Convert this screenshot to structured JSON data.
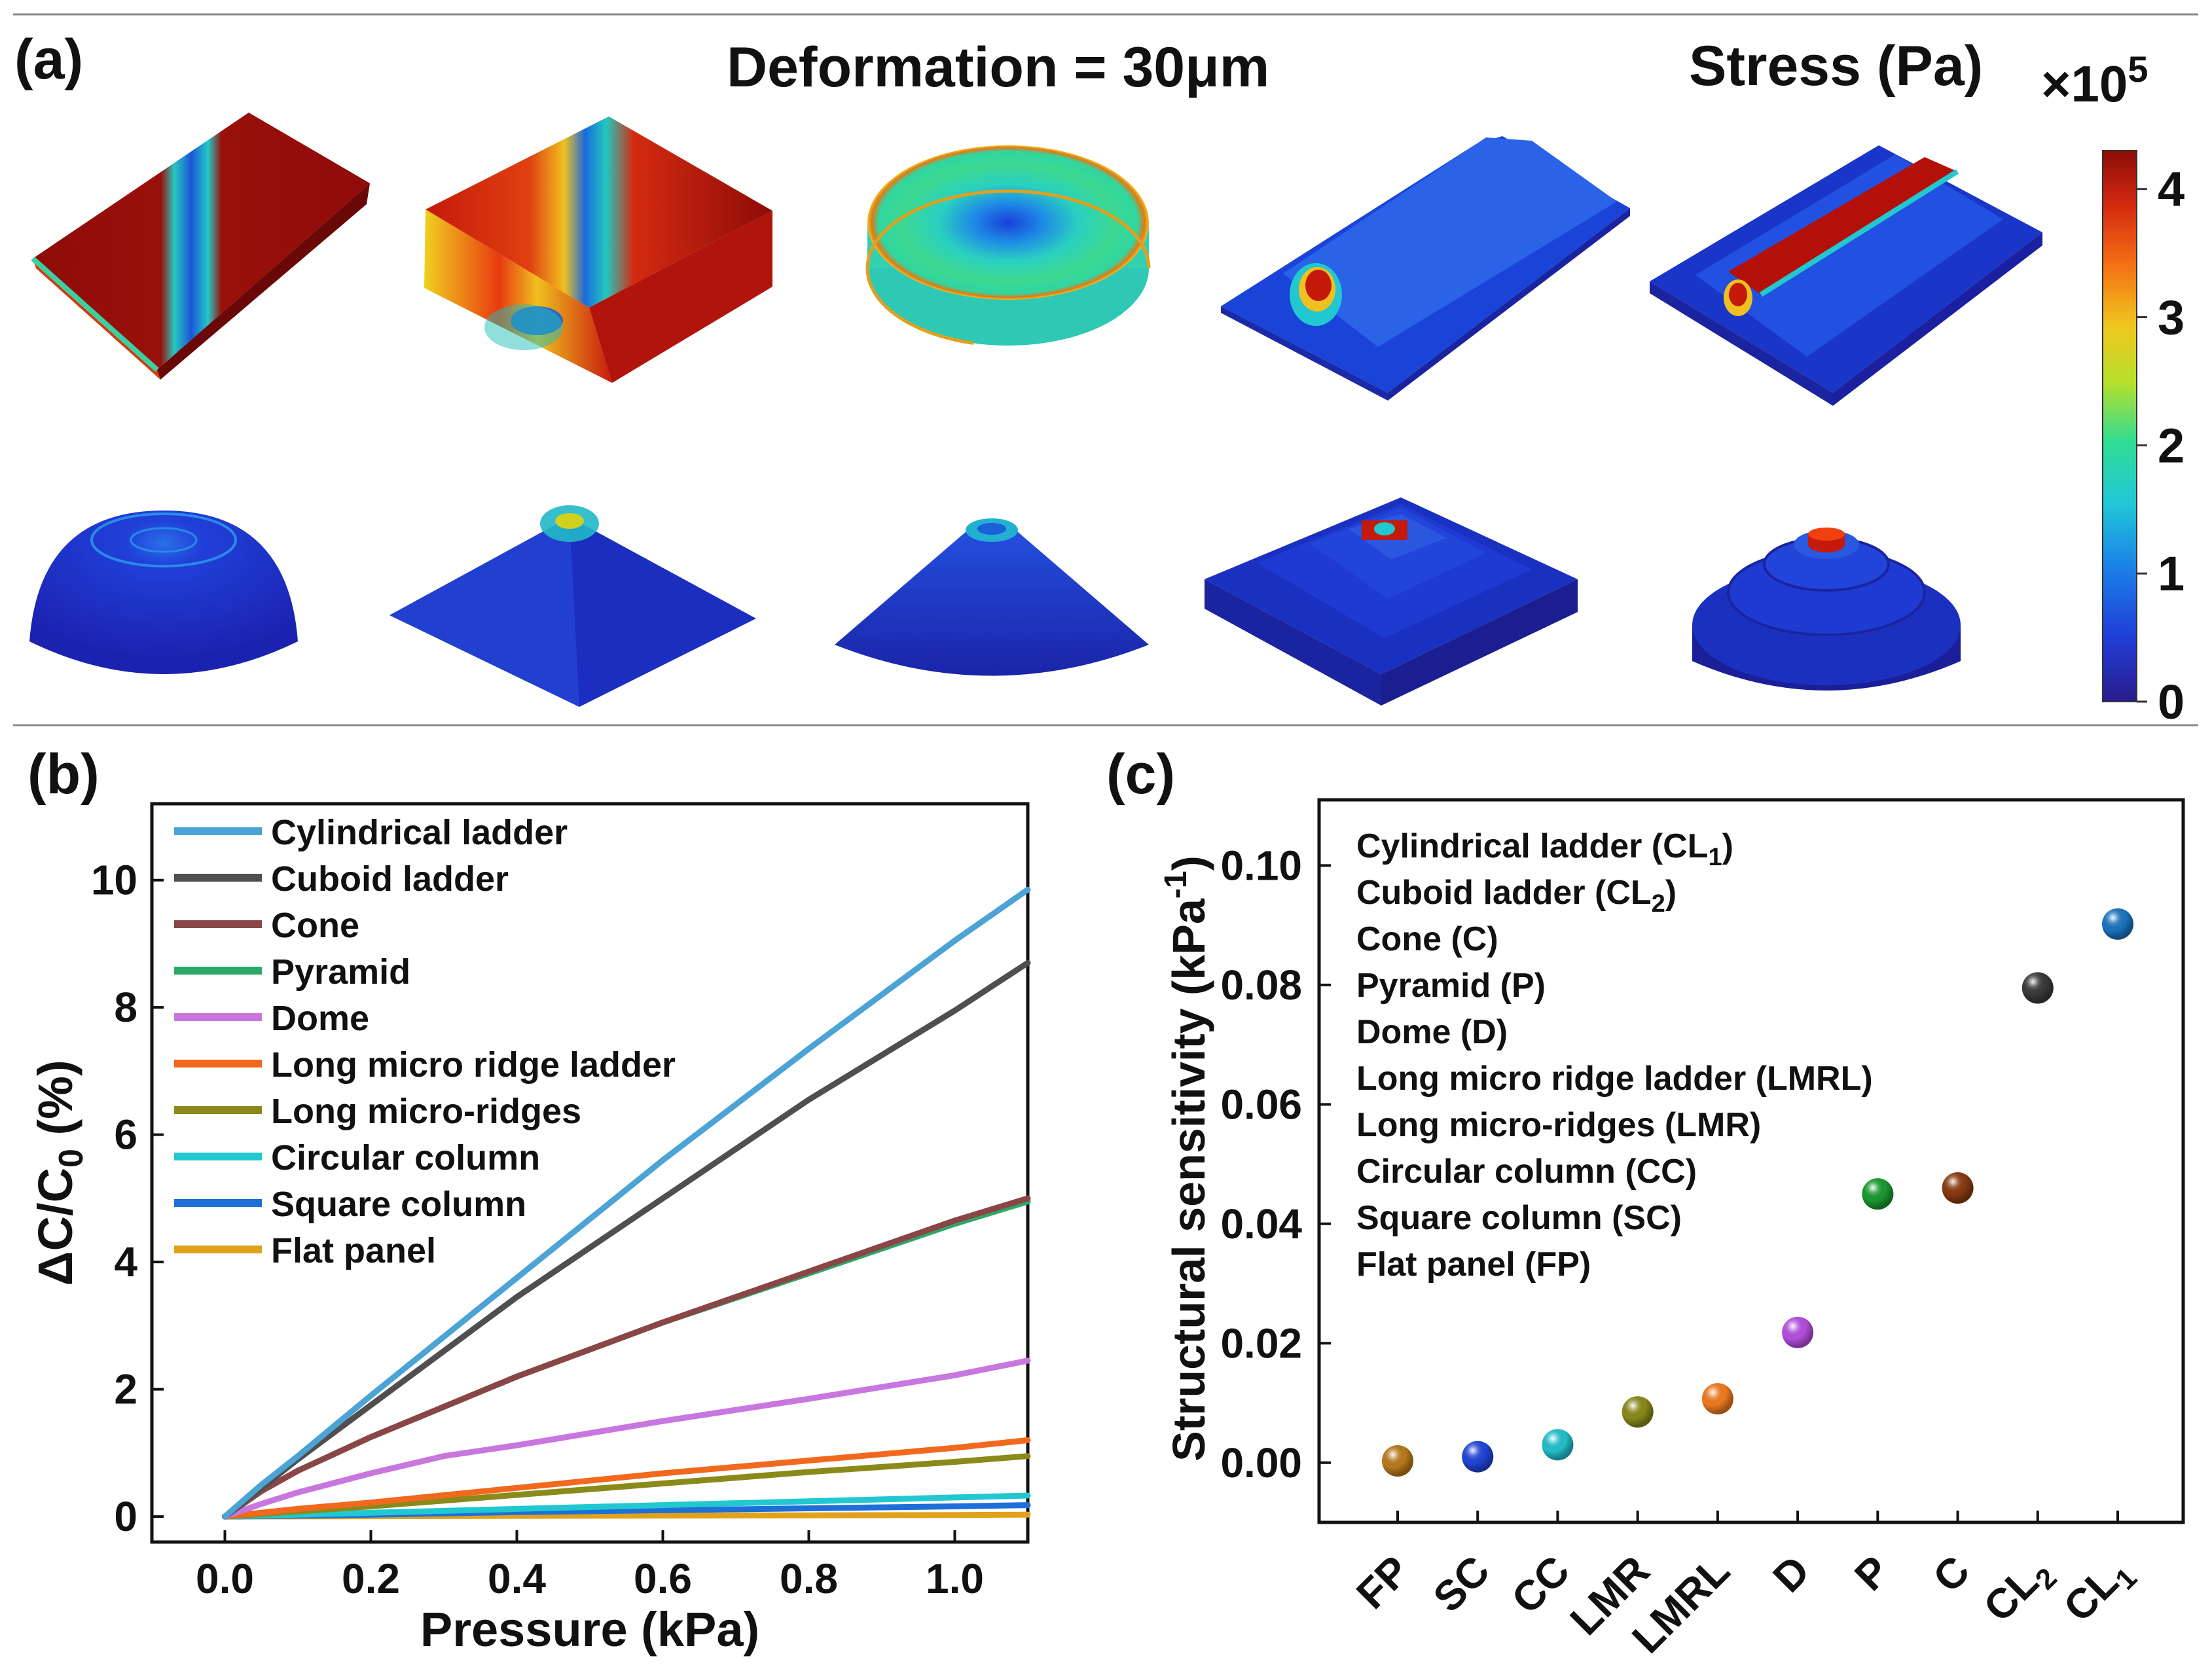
{
  "panel_a": {
    "label": "(a)",
    "title": "Deformation = 30μm",
    "stress_label": "Stress (Pa)",
    "stress_multiplier": "×10",
    "stress_exponent": "5",
    "colorbar_ticks": [
      "0",
      "1",
      "2",
      "3",
      "4"
    ],
    "colormap": [
      "#2a1c8c",
      "#1f3fd8",
      "#1b84e8",
      "#21c8d8",
      "#2fdc94",
      "#b8e02c",
      "#f0c81e",
      "#f46a14",
      "#d42a10",
      "#8c0c08"
    ],
    "shapes_row1": [
      "long-micro-ridges",
      "square-column",
      "circular-column",
      "long-micro-ridge-ladder-single",
      "long-micro-ridge-ladder"
    ],
    "shapes_row2": [
      "dome",
      "pyramid",
      "cone",
      "cuboid-ladder",
      "cylindrical-ladder"
    ]
  },
  "chart_data": [
    {
      "type": "line",
      "panel_label": "(b)",
      "xlabel": "Pressure (kPa)",
      "ylabel_main": "ΔC/C",
      "ylabel_sub": "0",
      "ylabel_tail": " (%)",
      "xlim": [
        -0.1,
        1.1
      ],
      "ylim": [
        -0.4,
        11.2
      ],
      "xticks": [
        0.0,
        0.2,
        0.4,
        0.6,
        0.8,
        1.0
      ],
      "xtick_labels": [
        "0.0",
        "0.2",
        "0.4",
        "0.6",
        "0.8",
        "1.0"
      ],
      "yticks": [
        0,
        2,
        4,
        6,
        8,
        10
      ],
      "ytick_labels": [
        "0",
        "2",
        "4",
        "6",
        "8",
        "10"
      ],
      "legend_position": "top-left",
      "series": [
        {
          "name": "Cylindrical ladder",
          "color": "#4ba3d6",
          "x": [
            0,
            0.05,
            0.1,
            0.2,
            0.4,
            0.6,
            0.8,
            1.0,
            1.1
          ],
          "y": [
            0,
            0.5,
            0.95,
            1.9,
            3.75,
            5.6,
            7.35,
            9.05,
            9.85
          ]
        },
        {
          "name": "Cuboid ladder",
          "color": "#4f4f4f",
          "x": [
            0,
            0.05,
            0.1,
            0.2,
            0.4,
            0.6,
            0.8,
            1.0,
            1.1
          ],
          "y": [
            0,
            0.45,
            0.9,
            1.75,
            3.45,
            5.0,
            6.55,
            7.95,
            8.7
          ]
        },
        {
          "name": "Cone",
          "color": "#8a4646",
          "x": [
            0,
            0.05,
            0.1,
            0.2,
            0.4,
            0.6,
            0.8,
            1.0,
            1.1
          ],
          "y": [
            0,
            0.4,
            0.72,
            1.25,
            2.2,
            3.05,
            3.85,
            4.65,
            5.0
          ]
        },
        {
          "name": "Pyramid",
          "color": "#2ea86a",
          "x": [
            0,
            0.05,
            0.1,
            0.2,
            0.4,
            0.6,
            0.8,
            1.0,
            1.1
          ],
          "y": [
            0,
            0.4,
            0.72,
            1.25,
            2.2,
            3.05,
            3.82,
            4.6,
            4.95
          ]
        },
        {
          "name": "Dome",
          "color": "#c777de",
          "x": [
            0,
            0.05,
            0.1,
            0.2,
            0.3,
            0.4,
            0.6,
            0.8,
            1.0,
            1.1
          ],
          "y": [
            0,
            0.2,
            0.38,
            0.68,
            0.95,
            1.12,
            1.5,
            1.85,
            2.22,
            2.45
          ]
        },
        {
          "name": "Long micro ridge ladder",
          "color": "#f2691e",
          "x": [
            0,
            0.1,
            0.2,
            0.4,
            0.6,
            0.8,
            1.0,
            1.1
          ],
          "y": [
            0,
            0.12,
            0.22,
            0.45,
            0.68,
            0.88,
            1.08,
            1.2
          ]
        },
        {
          "name": "Long micro-ridges",
          "color": "#8a8a1a",
          "x": [
            0,
            0.1,
            0.2,
            0.4,
            0.6,
            0.8,
            1.0,
            1.1
          ],
          "y": [
            0,
            0.08,
            0.16,
            0.34,
            0.52,
            0.7,
            0.86,
            0.95
          ]
        },
        {
          "name": "Circular column",
          "color": "#22c8d0",
          "x": [
            0,
            0.2,
            0.4,
            0.6,
            0.8,
            1.0,
            1.1
          ],
          "y": [
            0,
            0.06,
            0.12,
            0.18,
            0.24,
            0.3,
            0.33
          ]
        },
        {
          "name": "Square column",
          "color": "#1f6fd8",
          "x": [
            0,
            0.2,
            0.4,
            0.6,
            0.8,
            1.0,
            1.1
          ],
          "y": [
            0,
            0.03,
            0.07,
            0.1,
            0.13,
            0.16,
            0.18
          ]
        },
        {
          "name": "Flat panel",
          "color": "#e0a21a",
          "x": [
            0,
            0.2,
            0.4,
            0.6,
            0.8,
            1.0,
            1.1
          ],
          "y": [
            0,
            0.005,
            0.01,
            0.015,
            0.02,
            0.025,
            0.03
          ]
        }
      ]
    },
    {
      "type": "scatter",
      "panel_label": "(c)",
      "ylabel_main": "Structural sensitivity (kPa",
      "ylabel_sup": "-1",
      "ylabel_tail": ")",
      "ylim": [
        -0.01,
        0.111
      ],
      "yticks": [
        0.0,
        0.02,
        0.04,
        0.06,
        0.08,
        0.1
      ],
      "ytick_labels": [
        "0.00",
        "0.02",
        "0.04",
        "0.06",
        "0.08",
        "0.10"
      ],
      "categories": [
        "FP",
        "SC",
        "CC",
        "LMR",
        "LMRL",
        "D",
        "P",
        "C",
        "CL2",
        "CL1"
      ],
      "category_labels": [
        {
          "main": "FP",
          "sub": ""
        },
        {
          "main": "SC",
          "sub": ""
        },
        {
          "main": "CC",
          "sub": ""
        },
        {
          "main": "LMR",
          "sub": ""
        },
        {
          "main": "LMRL",
          "sub": ""
        },
        {
          "main": "D",
          "sub": ""
        },
        {
          "main": "P",
          "sub": ""
        },
        {
          "main": "C",
          "sub": ""
        },
        {
          "main": "CL",
          "sub": "2"
        },
        {
          "main": "CL",
          "sub": "1"
        }
      ],
      "values": [
        0.0003,
        0.001,
        0.003,
        0.0085,
        0.0107,
        0.0218,
        0.045,
        0.046,
        0.0795,
        0.0902
      ],
      "colors": [
        "#b87a1a",
        "#1f45d8",
        "#22c0cc",
        "#8a8a1a",
        "#f07a1e",
        "#b54ee0",
        "#1a9a30",
        "#8a3a10",
        "#3a3a3a",
        "#1a74c0"
      ],
      "legend": [
        {
          "main": "Cylindrical ladder (CL",
          "sub": "1",
          "tail": ")"
        },
        {
          "main": "Cuboid ladder (CL",
          "sub": "2",
          "tail": ")"
        },
        {
          "main": "Cone (C)",
          "sub": "",
          "tail": ""
        },
        {
          "main": "Pyramid (P)",
          "sub": "",
          "tail": ""
        },
        {
          "main": "Dome (D)",
          "sub": "",
          "tail": ""
        },
        {
          "main": "Long micro ridge ladder (LMRL)",
          "sub": "",
          "tail": ""
        },
        {
          "main": "Long micro-ridges (LMR)",
          "sub": "",
          "tail": ""
        },
        {
          "main": "Circular column (CC)",
          "sub": "",
          "tail": ""
        },
        {
          "main": "Square column (SC)",
          "sub": "",
          "tail": ""
        },
        {
          "main": "Flat panel (FP)",
          "sub": "",
          "tail": ""
        }
      ]
    }
  ]
}
